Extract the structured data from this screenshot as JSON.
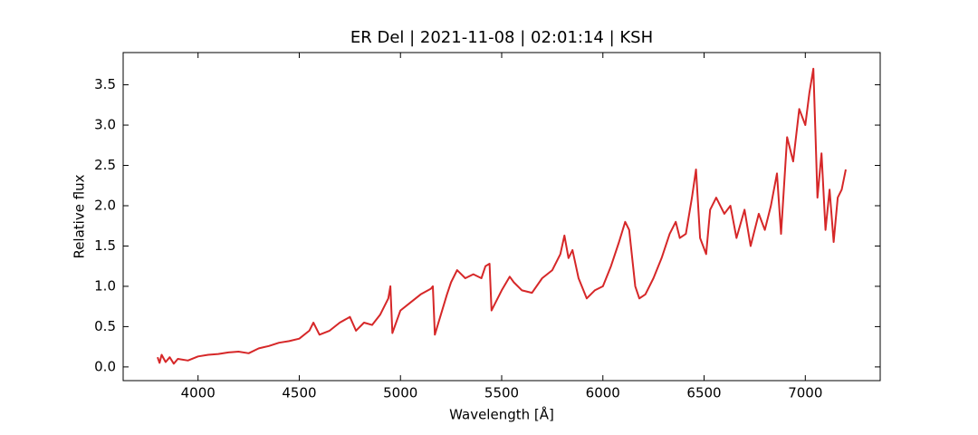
{
  "chart_data": {
    "type": "line",
    "title": "ER Del | 2021-11-08 | 02:01:14 | KSH",
    "xlabel": "Wavelength [Å]",
    "ylabel": "Relative flux",
    "x": [
      3800,
      3810,
      3820,
      3840,
      3860,
      3880,
      3900,
      3950,
      4000,
      4050,
      4100,
      4150,
      4200,
      4250,
      4300,
      4350,
      4400,
      4450,
      4500,
      4550,
      4570,
      4600,
      4650,
      4700,
      4750,
      4780,
      4820,
      4860,
      4900,
      4940,
      4950,
      4960,
      5000,
      5050,
      5100,
      5150,
      5160,
      5170,
      5200,
      5230,
      5250,
      5280,
      5320,
      5360,
      5400,
      5420,
      5440,
      5450,
      5500,
      5540,
      5560,
      5600,
      5650,
      5700,
      5750,
      5790,
      5810,
      5830,
      5850,
      5880,
      5920,
      5960,
      6000,
      6040,
      6080,
      6110,
      6130,
      6160,
      6180,
      6210,
      6250,
      6290,
      6330,
      6360,
      6380,
      6410,
      6440,
      6460,
      6480,
      6510,
      6530,
      6560,
      6600,
      6630,
      6660,
      6700,
      6730,
      6770,
      6800,
      6830,
      6860,
      6880,
      6910,
      6940,
      6970,
      7000,
      7020,
      7040,
      7050,
      7060,
      7080,
      7100,
      7120,
      7140,
      7160,
      7180,
      7200
    ],
    "series": [
      {
        "color": "#d62728",
        "values": [
          0.12,
          0.05,
          0.15,
          0.06,
          0.12,
          0.04,
          0.1,
          0.08,
          0.13,
          0.15,
          0.16,
          0.18,
          0.19,
          0.17,
          0.23,
          0.26,
          0.3,
          0.32,
          0.35,
          0.45,
          0.55,
          0.4,
          0.45,
          0.55,
          0.62,
          0.45,
          0.55,
          0.52,
          0.65,
          0.85,
          1.0,
          0.42,
          0.7,
          0.8,
          0.9,
          0.97,
          1.0,
          0.4,
          0.65,
          0.9,
          1.05,
          1.2,
          1.1,
          1.15,
          1.1,
          1.25,
          1.28,
          0.7,
          0.95,
          1.12,
          1.05,
          0.95,
          0.92,
          1.1,
          1.2,
          1.4,
          1.63,
          1.35,
          1.45,
          1.1,
          0.85,
          0.95,
          1.0,
          1.25,
          1.55,
          1.8,
          1.7,
          1.0,
          0.85,
          0.9,
          1.1,
          1.35,
          1.65,
          1.8,
          1.6,
          1.65,
          2.1,
          2.45,
          1.6,
          1.4,
          1.95,
          2.1,
          1.9,
          2.0,
          1.6,
          1.95,
          1.5,
          1.9,
          1.7,
          2.0,
          2.4,
          1.65,
          2.85,
          2.55,
          3.2,
          3.0,
          3.4,
          3.7,
          2.9,
          2.1,
          2.65,
          1.7,
          2.2,
          1.55,
          2.1,
          2.2,
          2.45
        ]
      }
    ],
    "xlim": [
      3630,
      7370
    ],
    "ylim": [
      -0.17,
      3.9
    ],
    "xticks": [
      4000,
      4500,
      5000,
      5500,
      6000,
      6500,
      7000
    ],
    "yticks": [
      {
        "value": 0,
        "label": "0.0"
      },
      0.5,
      {
        "value": 1,
        "label": "1.0"
      },
      1.5,
      {
        "value": 2,
        "label": "2.0"
      },
      2.5,
      {
        "value": 3,
        "label": "3.0"
      },
      3.5
    ]
  }
}
